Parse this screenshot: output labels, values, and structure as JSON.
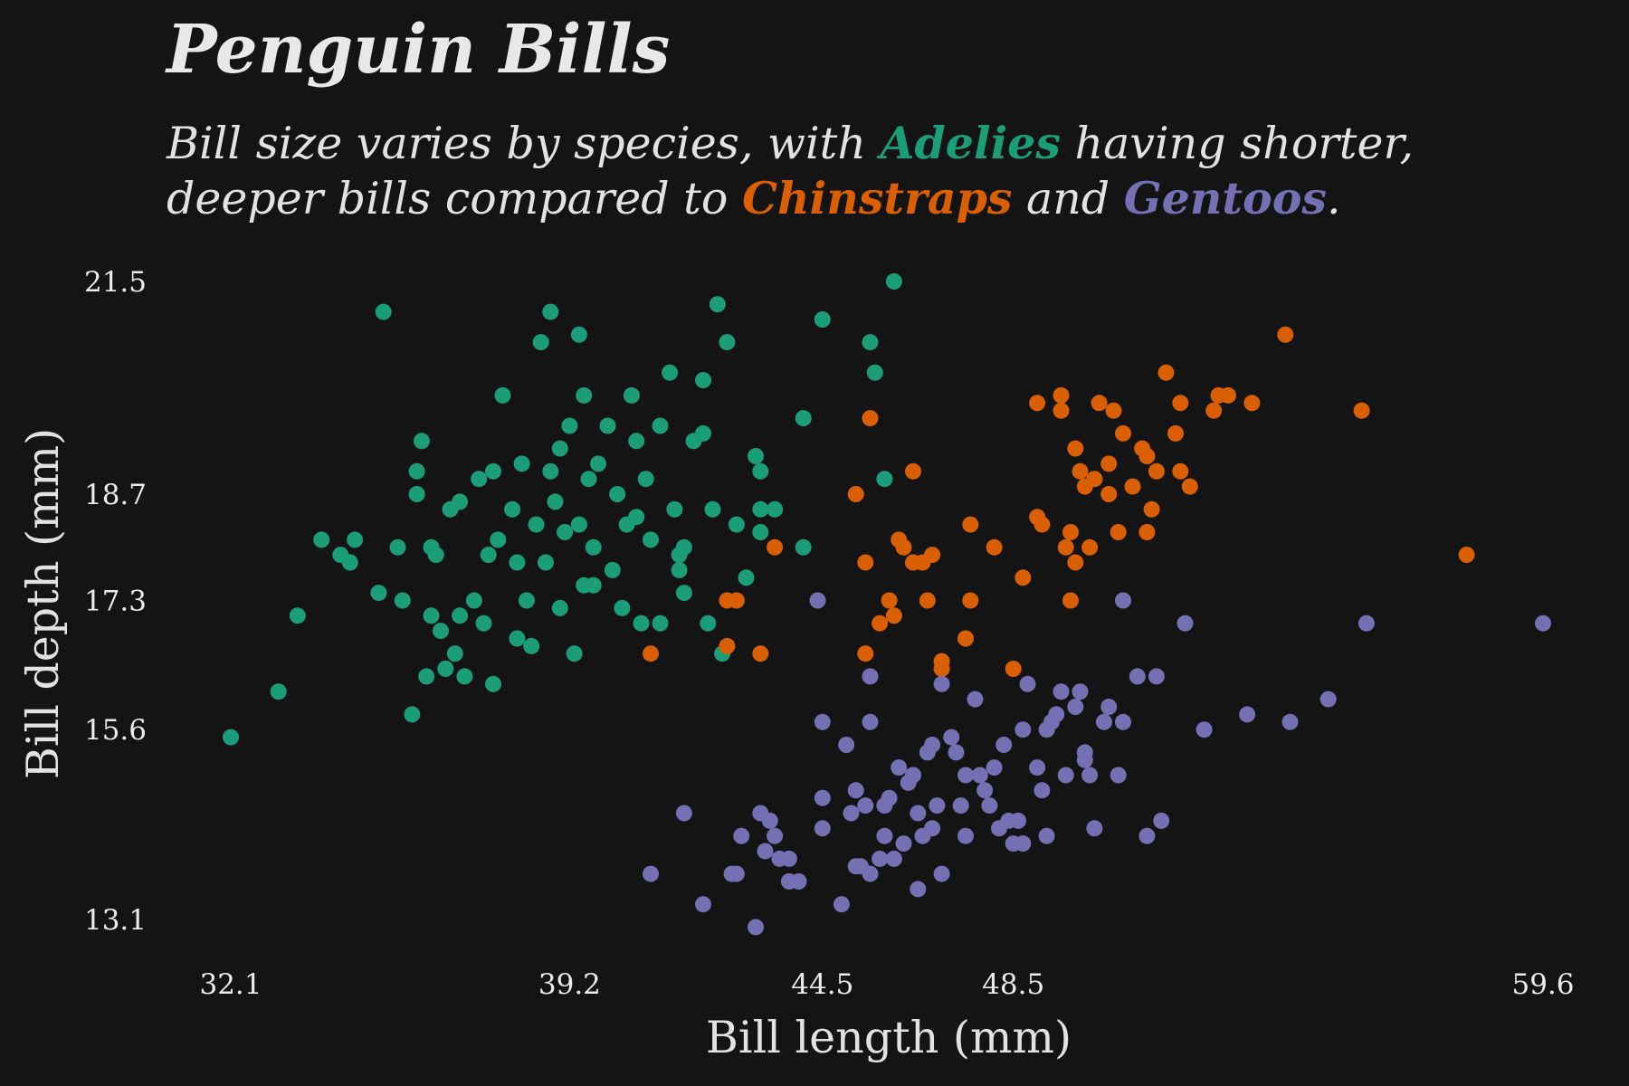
{
  "title": "Penguin Bills",
  "subtitle": {
    "part1": "Bill size varies by species, with ",
    "adelie": "Adelies",
    "part2": " having shorter, deeper bills compared to ",
    "chinstrap": "Chinstraps",
    "part3": " and ",
    "gentoo": "Gentoos",
    "part4": "."
  },
  "colors": {
    "background": "#141414",
    "adelie": "#1b9e77",
    "chinstrap": "#d95f02",
    "gentoo": "#7570b3"
  },
  "chart_data": {
    "type": "scatter",
    "xlabel": "Bill length (mm)",
    "ylabel": "Bill depth (mm)",
    "xlim": [
      32.1,
      59.6
    ],
    "ylim": [
      13.1,
      21.5
    ],
    "xticks": [
      "32.1",
      "39.2",
      "44.5",
      "48.5",
      "59.6"
    ],
    "yticks": [
      "13.1",
      "15.6",
      "17.3",
      "18.7",
      "21.5"
    ],
    "grid": false,
    "series": [
      {
        "name": "Adelies",
        "color": "#1b9e77",
        "points": [
          [
            32.1,
            15.5
          ],
          [
            33.1,
            16.1
          ],
          [
            33.5,
            17.1
          ],
          [
            34.0,
            18.1
          ],
          [
            34.4,
            17.9
          ],
          [
            34.6,
            17.8
          ],
          [
            34.7,
            18.1
          ],
          [
            35.2,
            17.4
          ],
          [
            35.6,
            18.0
          ],
          [
            35.7,
            17.3
          ],
          [
            35.3,
            21.1
          ],
          [
            35.9,
            15.8
          ],
          [
            36.0,
            18.7
          ],
          [
            36.1,
            19.4
          ],
          [
            36.2,
            16.3
          ],
          [
            36.3,
            17.1
          ],
          [
            36.3,
            18.0
          ],
          [
            36.4,
            17.9
          ],
          [
            36.5,
            16.9
          ],
          [
            36.6,
            16.4
          ],
          [
            36.7,
            18.5
          ],
          [
            36.8,
            16.6
          ],
          [
            36.9,
            18.6
          ],
          [
            36.9,
            17.1
          ],
          [
            37.0,
            16.3
          ],
          [
            37.2,
            17.3
          ],
          [
            37.3,
            18.9
          ],
          [
            37.4,
            17.0
          ],
          [
            37.5,
            17.9
          ],
          [
            37.6,
            19.0
          ],
          [
            37.7,
            18.1
          ],
          [
            37.8,
            20.0
          ],
          [
            38.0,
            18.5
          ],
          [
            38.1,
            17.8
          ],
          [
            38.1,
            16.8
          ],
          [
            38.2,
            19.1
          ],
          [
            38.3,
            17.3
          ],
          [
            38.4,
            16.7
          ],
          [
            38.5,
            18.3
          ],
          [
            38.6,
            20.7
          ],
          [
            38.7,
            17.8
          ],
          [
            38.8,
            19.0
          ],
          [
            38.9,
            18.6
          ],
          [
            39.0,
            19.3
          ],
          [
            39.0,
            17.2
          ],
          [
            39.1,
            18.2
          ],
          [
            39.2,
            19.6
          ],
          [
            39.3,
            16.6
          ],
          [
            39.4,
            18.3
          ],
          [
            39.5,
            20.0
          ],
          [
            39.5,
            17.5
          ],
          [
            39.6,
            18.9
          ],
          [
            39.7,
            18.0
          ],
          [
            39.7,
            17.5
          ],
          [
            39.8,
            19.1
          ],
          [
            40.0,
            19.6
          ],
          [
            40.1,
            17.7
          ],
          [
            40.2,
            18.7
          ],
          [
            40.3,
            17.2
          ],
          [
            40.4,
            18.3
          ],
          [
            40.5,
            20.0
          ],
          [
            40.6,
            18.4
          ],
          [
            40.7,
            17.0
          ],
          [
            40.8,
            18.9
          ],
          [
            40.9,
            18.1
          ],
          [
            41.1,
            19.6
          ],
          [
            41.1,
            17.0
          ],
          [
            41.3,
            20.3
          ],
          [
            41.4,
            18.5
          ],
          [
            41.5,
            17.9
          ],
          [
            41.6,
            18.0
          ],
          [
            41.6,
            17.4
          ],
          [
            41.8,
            19.4
          ],
          [
            42.0,
            19.5
          ],
          [
            42.0,
            20.2
          ],
          [
            42.1,
            17.0
          ],
          [
            42.2,
            18.5
          ],
          [
            42.3,
            21.2
          ],
          [
            42.5,
            20.7
          ],
          [
            42.7,
            18.3
          ],
          [
            42.9,
            17.6
          ],
          [
            43.1,
            19.2
          ],
          [
            43.2,
            18.5
          ],
          [
            43.2,
            19.0
          ],
          [
            43.2,
            18.2
          ],
          [
            43.5,
            18.5
          ],
          [
            44.1,
            19.7
          ],
          [
            44.1,
            18.0
          ],
          [
            45.6,
            20.3
          ],
          [
            45.8,
            18.9
          ],
          [
            46.0,
            21.5
          ],
          [
            45.5,
            20.7
          ],
          [
            44.5,
            21.0
          ],
          [
            38.8,
            21.1
          ],
          [
            39.4,
            20.8
          ],
          [
            36.0,
            19.0
          ],
          [
            37.6,
            16.2
          ],
          [
            41.5,
            17.7
          ],
          [
            42.4,
            16.6
          ],
          [
            40.6,
            19.4
          ]
        ]
      },
      {
        "name": "Chinstraps",
        "color": "#d95f02",
        "points": [
          [
            40.9,
            16.6
          ],
          [
            42.5,
            17.3
          ],
          [
            42.7,
            17.3
          ],
          [
            42.5,
            16.7
          ],
          [
            43.2,
            16.6
          ],
          [
            43.5,
            18.0
          ],
          [
            45.2,
            18.7
          ],
          [
            45.4,
            17.8
          ],
          [
            45.4,
            16.6
          ],
          [
            45.7,
            17.0
          ],
          [
            45.5,
            19.7
          ],
          [
            45.9,
            17.3
          ],
          [
            46.0,
            17.1
          ],
          [
            46.1,
            18.1
          ],
          [
            46.2,
            18.0
          ],
          [
            46.4,
            19.0
          ],
          [
            46.4,
            17.8
          ],
          [
            46.6,
            17.8
          ],
          [
            46.7,
            17.3
          ],
          [
            46.8,
            17.9
          ],
          [
            47.0,
            16.4
          ],
          [
            47.0,
            16.5
          ],
          [
            47.5,
            16.8
          ],
          [
            47.6,
            17.3
          ],
          [
            47.6,
            18.3
          ],
          [
            48.1,
            18.0
          ],
          [
            48.5,
            16.4
          ],
          [
            48.7,
            17.6
          ],
          [
            49.0,
            18.4
          ],
          [
            49.0,
            19.9
          ],
          [
            49.1,
            18.3
          ],
          [
            49.5,
            19.8
          ],
          [
            49.5,
            20.0
          ],
          [
            49.6,
            18.0
          ],
          [
            49.7,
            18.2
          ],
          [
            49.7,
            17.3
          ],
          [
            49.8,
            19.3
          ],
          [
            49.9,
            19.0
          ],
          [
            50.0,
            18.8
          ],
          [
            50.1,
            18.0
          ],
          [
            50.3,
            19.9
          ],
          [
            50.5,
            18.7
          ],
          [
            50.5,
            19.1
          ],
          [
            50.6,
            19.8
          ],
          [
            50.7,
            18.2
          ],
          [
            50.8,
            19.5
          ],
          [
            51.0,
            18.8
          ],
          [
            51.3,
            18.2
          ],
          [
            51.3,
            19.2
          ],
          [
            51.4,
            18.5
          ],
          [
            51.5,
            19.0
          ],
          [
            51.7,
            20.3
          ],
          [
            51.9,
            19.5
          ],
          [
            52.0,
            19.9
          ],
          [
            52.2,
            18.8
          ],
          [
            52.7,
            19.8
          ],
          [
            53.5,
            19.9
          ],
          [
            54.2,
            20.8
          ],
          [
            55.8,
            19.8
          ],
          [
            58.0,
            17.9
          ],
          [
            52.8,
            20.0
          ],
          [
            50.2,
            18.9
          ],
          [
            51.2,
            19.3
          ],
          [
            49.8,
            17.8
          ],
          [
            52.0,
            19.0
          ],
          [
            53.0,
            20.0
          ]
        ]
      },
      {
        "name": "Gentoos",
        "color": "#7570b3",
        "points": [
          [
            40.9,
            13.7
          ],
          [
            41.6,
            14.5
          ],
          [
            42.0,
            13.3
          ],
          [
            42.6,
            13.7
          ],
          [
            42.7,
            13.7
          ],
          [
            42.8,
            14.2
          ],
          [
            43.1,
            13.0
          ],
          [
            43.2,
            14.5
          ],
          [
            43.3,
            14.0
          ],
          [
            43.4,
            14.4
          ],
          [
            43.5,
            14.2
          ],
          [
            43.6,
            13.9
          ],
          [
            43.8,
            13.9
          ],
          [
            43.8,
            13.6
          ],
          [
            44.0,
            13.6
          ],
          [
            44.4,
            17.3
          ],
          [
            44.5,
            15.7
          ],
          [
            44.5,
            14.7
          ],
          [
            44.5,
            14.3
          ],
          [
            44.9,
            13.3
          ],
          [
            45.0,
            15.4
          ],
          [
            45.1,
            14.5
          ],
          [
            45.2,
            13.8
          ],
          [
            45.2,
            14.8
          ],
          [
            45.3,
            13.8
          ],
          [
            45.4,
            14.6
          ],
          [
            45.5,
            15.7
          ],
          [
            45.5,
            13.7
          ],
          [
            45.5,
            16.3
          ],
          [
            45.7,
            13.9
          ],
          [
            45.8,
            14.6
          ],
          [
            45.8,
            14.2
          ],
          [
            46.0,
            13.9
          ],
          [
            46.1,
            15.1
          ],
          [
            46.2,
            14.1
          ],
          [
            46.3,
            14.9
          ],
          [
            46.4,
            15.0
          ],
          [
            46.5,
            14.5
          ],
          [
            46.5,
            13.5
          ],
          [
            46.6,
            14.2
          ],
          [
            46.7,
            15.3
          ],
          [
            46.8,
            14.3
          ],
          [
            46.9,
            14.6
          ],
          [
            47.0,
            13.7
          ],
          [
            47.2,
            15.5
          ],
          [
            47.3,
            15.3
          ],
          [
            47.4,
            14.6
          ],
          [
            47.5,
            14.2
          ],
          [
            47.5,
            15.0
          ],
          [
            47.7,
            16.0
          ],
          [
            47.8,
            15.0
          ],
          [
            48.1,
            15.1
          ],
          [
            48.2,
            14.3
          ],
          [
            48.4,
            14.4
          ],
          [
            48.5,
            14.1
          ],
          [
            48.7,
            14.1
          ],
          [
            48.8,
            16.2
          ],
          [
            49.0,
            15.1
          ],
          [
            49.1,
            14.8
          ],
          [
            49.2,
            15.6
          ],
          [
            49.4,
            15.8
          ],
          [
            49.5,
            16.1
          ],
          [
            49.6,
            15.0
          ],
          [
            49.8,
            15.9
          ],
          [
            49.9,
            16.1
          ],
          [
            50.0,
            15.2
          ],
          [
            50.1,
            15.0
          ],
          [
            50.2,
            14.3
          ],
          [
            50.4,
            15.7
          ],
          [
            50.5,
            15.9
          ],
          [
            50.7,
            15.0
          ],
          [
            50.8,
            17.3
          ],
          [
            50.8,
            15.7
          ],
          [
            51.1,
            16.3
          ],
          [
            51.3,
            14.2
          ],
          [
            51.5,
            16.3
          ],
          [
            52.1,
            17.0
          ],
          [
            52.5,
            15.6
          ],
          [
            53.4,
            15.8
          ],
          [
            54.3,
            15.7
          ],
          [
            55.1,
            16.0
          ],
          [
            55.9,
            17.0
          ],
          [
            59.6,
            17.0
          ],
          [
            48.6,
            14.4
          ],
          [
            47.0,
            16.2
          ],
          [
            49.3,
            15.7
          ],
          [
            48.3,
            15.4
          ],
          [
            50.0,
            15.3
          ],
          [
            49.2,
            14.2
          ],
          [
            48.0,
            14.6
          ],
          [
            46.8,
            15.4
          ],
          [
            45.9,
            14.7
          ],
          [
            47.9,
            14.8
          ],
          [
            48.7,
            15.6
          ],
          [
            51.6,
            14.4
          ]
        ]
      }
    ]
  }
}
